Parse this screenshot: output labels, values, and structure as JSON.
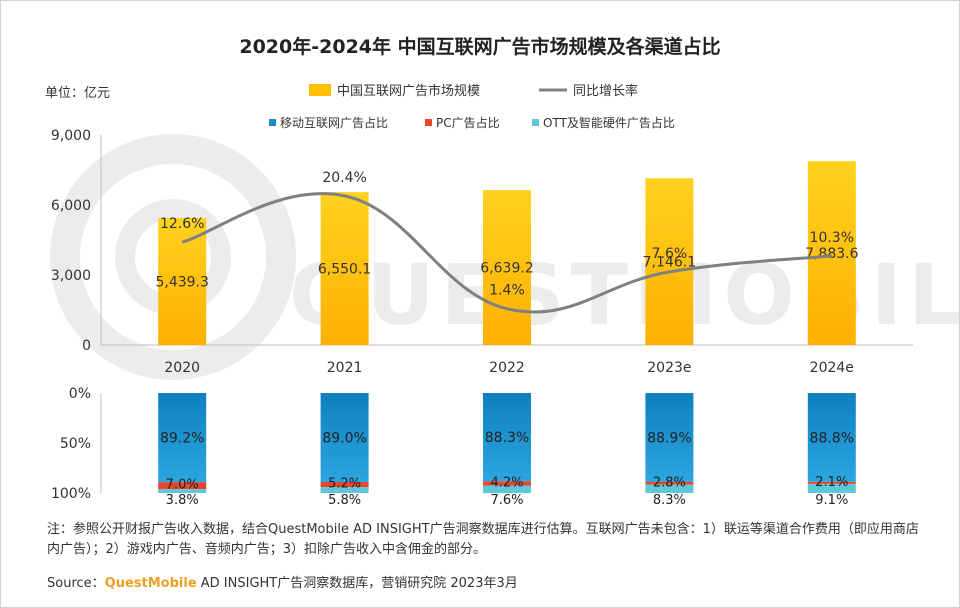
{
  "chart_data": [
    {
      "type": "bar+line",
      "title": "2020年-2024年 中国互联网广告市场规模及各渠道占比",
      "unit_label": "单位：亿元",
      "categories": [
        "2020",
        "2021",
        "2022",
        "2023e",
        "2024e"
      ],
      "y_ticks": [
        "9,000",
        "6,000",
        "3,000",
        "0"
      ],
      "ylim": [
        0,
        9000
      ],
      "series": [
        {
          "name": "中国互联网广告市场规模",
          "type": "bar",
          "color": "#ffc000",
          "values": [
            5439.3,
            6550.1,
            6639.2,
            7146.1,
            7883.6
          ],
          "labels": [
            "5,439.3",
            "6,550.1",
            "6,639.2",
            "7,146.1",
            "7,883.6"
          ]
        },
        {
          "name": "同比增长率",
          "type": "line",
          "color": "#808080",
          "values": [
            12.6,
            20.4,
            1.4,
            7.6,
            10.3
          ],
          "labels": [
            "12.6%",
            "20.4%",
            "1.4%",
            "7.6%",
            "10.3%"
          ]
        }
      ],
      "legend_position": "top"
    },
    {
      "type": "stacked-bar-100",
      "y_ticks": [
        "0%",
        "50%",
        "100%"
      ],
      "series": [
        {
          "name": "移动互联网广告占比",
          "color": "#1e8bc9",
          "values": [
            89.2,
            89.0,
            88.3,
            88.9,
            88.8
          ],
          "labels": [
            "89.2%",
            "89.0%",
            "88.3%",
            "88.9%",
            "88.8%"
          ]
        },
        {
          "name": "PC广告占比",
          "color": "#e8472e",
          "values": [
            7.0,
            5.2,
            4.2,
            2.8,
            2.1
          ],
          "labels": [
            "7.0%",
            "5.2%",
            "4.2%",
            "2.8%",
            "2.1%"
          ]
        },
        {
          "name": "OTT及智能硬件广告占比",
          "color": "#5ec8d8",
          "values": [
            3.8,
            5.8,
            7.6,
            8.3,
            9.1
          ],
          "labels": [
            "3.8%",
            "5.8%",
            "7.6%",
            "8.3%",
            "9.1%"
          ]
        }
      ],
      "legend_position": "top"
    }
  ],
  "watermark": "QUESTMOBILE",
  "note": "注：参照公开财报广告收入数据，结合QuestMobile AD INSIGHT广告洞察数据库进行估算。互联网广告未包含：1）联运等渠道合作费用（即应用商店内广告）；2）游戏内广告、音频内广告；3）扣除广告收入中含佣金的部分。",
  "source": {
    "prefix": "Source：",
    "brand": "QuestMobile",
    "rest": " AD INSIGHT广告洞察数据库，营销研究院 2023年3月"
  }
}
